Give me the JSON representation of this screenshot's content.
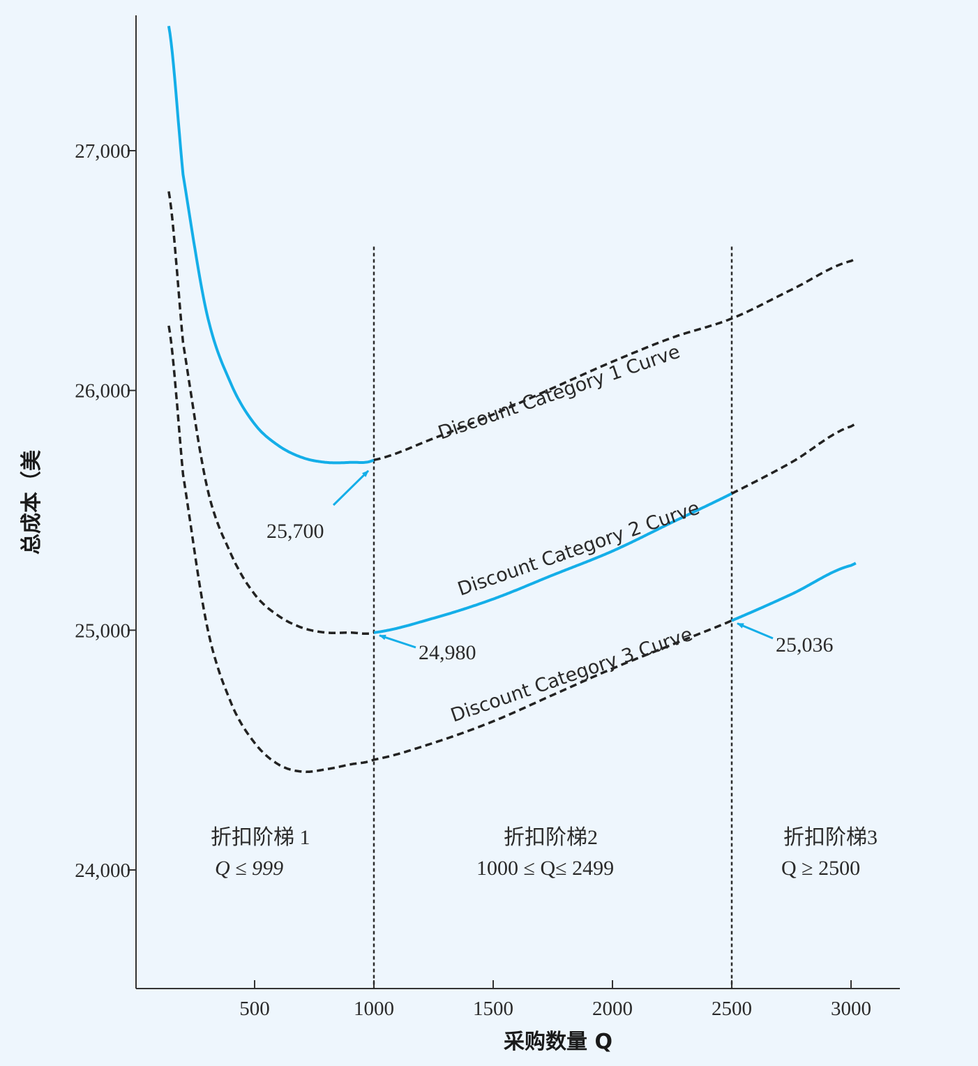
{
  "chart_data": {
    "type": "line",
    "xlabel": "采购数量 Q",
    "ylabel": "总成本（美",
    "xlim": [
      0,
      3200
    ],
    "ylim": [
      23500,
      27550
    ],
    "x_ticks": [
      500,
      1000,
      1500,
      2000,
      2500,
      3000
    ],
    "x_tick_labels": [
      "500",
      "1000",
      "1500",
      "2000",
      "2500",
      "3000"
    ],
    "y_ticks": [
      24000,
      25000,
      26000,
      27000
    ],
    "y_tick_labels": [
      "24,000",
      "25,000",
      "26,000",
      "27,000"
    ],
    "grid": false,
    "legend": "none",
    "series": [
      {
        "name": "Discount Category 1 Curve",
        "color": "#14aee8",
        "solid_range": [
          140,
          999
        ],
        "x": [
          140,
          200,
          300,
          400,
          500,
          600,
          700,
          800,
          900,
          1000,
          1250,
          1500,
          1750,
          2000,
          2250,
          2500,
          2750,
          3000
        ],
        "y": [
          27520,
          26900,
          26320,
          26030,
          25860,
          25770,
          25720,
          25700,
          25700,
          25710,
          25800,
          25900,
          26010,
          26120,
          26220,
          26300,
          26420,
          26540
        ]
      },
      {
        "name": "Discount Category 2 Curve",
        "color": "#14aee8",
        "solid_range": [
          1000,
          2499
        ],
        "x": [
          140,
          200,
          300,
          400,
          500,
          600,
          700,
          800,
          900,
          1000,
          1250,
          1500,
          1750,
          2000,
          2250,
          2500,
          2750,
          3000
        ],
        "y": [
          26830,
          26200,
          25600,
          25320,
          25150,
          25060,
          25010,
          24990,
          24990,
          24990,
          25050,
          25130,
          25230,
          25330,
          25450,
          25570,
          25700,
          25850
        ]
      },
      {
        "name": "Discount Category 3 Curve",
        "color": "#14aee8",
        "solid_range": [
          2500,
          3020
        ],
        "x": [
          140,
          200,
          300,
          400,
          500,
          600,
          700,
          800,
          900,
          1000,
          1250,
          1500,
          1750,
          2000,
          2250,
          2500,
          2750,
          3000
        ],
        "y": [
          26270,
          25650,
          25020,
          24700,
          24530,
          24440,
          24410,
          24420,
          24440,
          24460,
          24530,
          24620,
          24730,
          24840,
          24940,
          25040,
          25150,
          25270
        ]
      }
    ],
    "vertical_lines": [
      1000,
      2500
    ],
    "annotations": [
      {
        "text": "25,700",
        "x": 1000,
        "y": 25700
      },
      {
        "text": "24,980",
        "x": 1000,
        "y": 24990
      },
      {
        "text": "25,036",
        "x": 2500,
        "y": 25040
      }
    ],
    "regions": [
      {
        "line1": "折扣阶梯 1",
        "line2": "Q ≤ 999"
      },
      {
        "line1": "折扣阶梯2",
        "line2": "1000 ≤ Q≤ 2499"
      },
      {
        "line1": "折扣阶梯3",
        "line2": "Q ≥ 2500"
      }
    ]
  }
}
